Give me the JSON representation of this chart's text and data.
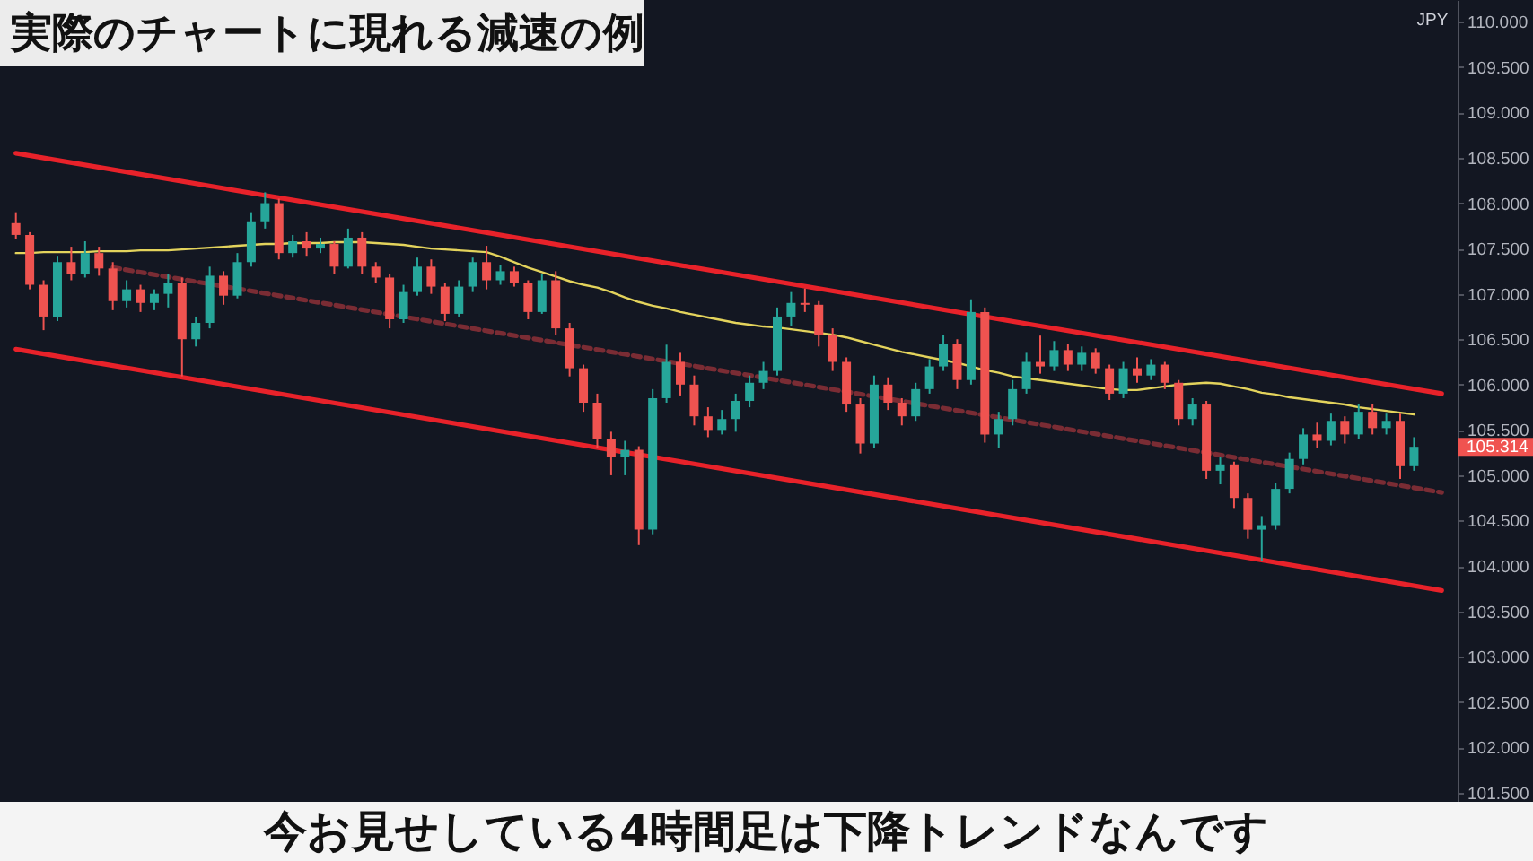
{
  "chart_data": {
    "type": "candlestick",
    "title": "実際のチャートに現れる減速の例",
    "ylabel": "JPY",
    "annotations": [
      "今お見せしている4時間足は下降トレンドなんです"
    ],
    "categories": [
      null,
      null,
      null,
      null,
      null,
      null,
      null,
      null,
      null,
      null,
      null,
      null,
      null,
      null,
      null,
      null,
      null,
      null,
      null,
      null,
      null,
      null,
      null,
      null,
      null,
      null,
      null,
      null,
      null,
      null,
      null,
      null,
      null,
      null,
      null,
      null,
      null,
      null,
      null,
      null,
      null,
      null,
      null,
      null,
      null,
      null,
      null,
      null,
      null,
      null,
      null,
      null,
      null,
      null,
      null,
      null,
      null,
      null,
      null,
      null,
      null,
      null,
      null,
      null,
      null,
      null,
      null,
      null,
      null,
      null,
      null,
      null,
      null,
      null,
      null,
      null,
      null,
      null,
      null,
      null,
      null,
      null,
      null,
      null,
      null,
      null,
      null,
      null,
      null,
      null,
      null,
      null,
      null,
      null,
      null,
      null,
      null,
      null,
      null,
      null,
      null,
      null,
      null,
      null
    ],
    "ohlc": [
      [
        107.78,
        107.9,
        107.6,
        107.65
      ],
      [
        107.65,
        107.68,
        107.05,
        107.1
      ],
      [
        107.1,
        107.15,
        106.6,
        106.75
      ],
      [
        106.75,
        107.42,
        106.7,
        107.35
      ],
      [
        107.35,
        107.52,
        107.15,
        107.22
      ],
      [
        107.22,
        107.58,
        107.18,
        107.45
      ],
      [
        107.45,
        107.52,
        107.2,
        107.28
      ],
      [
        107.28,
        107.35,
        106.82,
        106.92
      ],
      [
        106.92,
        107.15,
        106.85,
        107.05
      ],
      [
        107.05,
        107.1,
        106.8,
        106.9
      ],
      [
        106.9,
        107.05,
        106.82,
        107.0
      ],
      [
        107.0,
        107.22,
        106.85,
        107.12
      ],
      [
        107.12,
        107.18,
        106.09,
        106.5
      ],
      [
        106.5,
        106.75,
        106.42,
        106.68
      ],
      [
        106.68,
        107.3,
        106.62,
        107.2
      ],
      [
        107.2,
        107.25,
        106.88,
        106.98
      ],
      [
        106.98,
        107.45,
        106.95,
        107.35
      ],
      [
        107.35,
        107.9,
        107.3,
        107.8
      ],
      [
        107.8,
        108.12,
        107.72,
        108.0
      ],
      [
        108.0,
        108.05,
        107.38,
        107.45
      ],
      [
        107.45,
        107.65,
        107.4,
        107.58
      ],
      [
        107.58,
        107.68,
        107.42,
        107.5
      ],
      [
        107.5,
        107.62,
        107.45,
        107.55
      ],
      [
        107.55,
        107.58,
        107.22,
        107.3
      ],
      [
        107.3,
        107.72,
        107.28,
        107.62
      ],
      [
        107.62,
        107.68,
        107.22,
        107.3
      ],
      [
        107.3,
        107.35,
        107.12,
        107.18
      ],
      [
        107.18,
        107.22,
        106.62,
        106.72
      ],
      [
        106.72,
        107.1,
        106.68,
        107.02
      ],
      [
        107.02,
        107.4,
        106.98,
        107.3
      ],
      [
        107.3,
        107.38,
        107.0,
        107.08
      ],
      [
        107.08,
        107.12,
        106.7,
        106.78
      ],
      [
        106.78,
        107.15,
        106.75,
        107.08
      ],
      [
        107.08,
        107.4,
        107.02,
        107.35
      ],
      [
        107.35,
        107.53,
        107.05,
        107.15
      ],
      [
        107.15,
        107.32,
        107.1,
        107.25
      ],
      [
        107.25,
        107.3,
        107.08,
        107.12
      ],
      [
        107.12,
        107.15,
        106.72,
        106.8
      ],
      [
        106.8,
        107.22,
        106.78,
        107.15
      ],
      [
        107.15,
        107.25,
        106.55,
        106.62
      ],
      [
        106.62,
        106.68,
        106.09,
        106.18
      ],
      [
        106.18,
        106.22,
        105.7,
        105.8
      ],
      [
        105.8,
        105.9,
        105.3,
        105.4
      ],
      [
        105.4,
        105.48,
        105.0,
        105.2
      ],
      [
        105.2,
        105.38,
        105.0,
        105.28
      ],
      [
        105.28,
        105.32,
        104.23,
        104.4
      ],
      [
        104.4,
        105.95,
        104.35,
        105.85
      ],
      [
        105.85,
        106.44,
        105.8,
        106.25
      ],
      [
        106.25,
        106.35,
        105.88,
        106.0
      ],
      [
        106.0,
        106.1,
        105.55,
        105.65
      ],
      [
        105.65,
        105.75,
        105.42,
        105.5
      ],
      [
        105.5,
        105.72,
        105.45,
        105.62
      ],
      [
        105.62,
        105.9,
        105.48,
        105.82
      ],
      [
        105.82,
        106.1,
        105.75,
        106.02
      ],
      [
        106.02,
        106.25,
        105.95,
        106.15
      ],
      [
        106.15,
        106.85,
        106.1,
        106.75
      ],
      [
        106.75,
        107.02,
        106.65,
        106.9
      ],
      [
        106.9,
        107.06,
        106.8,
        106.88
      ],
      [
        106.88,
        106.92,
        106.42,
        106.55
      ],
      [
        106.55,
        106.62,
        106.15,
        106.25
      ],
      [
        106.25,
        106.3,
        105.7,
        105.78
      ],
      [
        105.78,
        105.85,
        105.24,
        105.35
      ],
      [
        105.35,
        106.1,
        105.3,
        106.0
      ],
      [
        106.0,
        106.08,
        105.72,
        105.8
      ],
      [
        105.8,
        105.85,
        105.55,
        105.65
      ],
      [
        105.65,
        106.02,
        105.6,
        105.95
      ],
      [
        105.95,
        106.28,
        105.9,
        106.2
      ],
      [
        106.2,
        106.55,
        106.15,
        106.45
      ],
      [
        106.45,
        106.5,
        105.95,
        106.05
      ],
      [
        106.05,
        106.94,
        106.0,
        106.8
      ],
      [
        106.8,
        106.85,
        105.36,
        105.45
      ],
      [
        105.45,
        105.7,
        105.3,
        105.62
      ],
      [
        105.62,
        106.05,
        105.55,
        105.95
      ],
      [
        105.95,
        106.35,
        105.9,
        106.25
      ],
      [
        106.25,
        106.54,
        106.12,
        106.2
      ],
      [
        106.2,
        106.48,
        106.15,
        106.38
      ],
      [
        106.38,
        106.45,
        106.15,
        106.22
      ],
      [
        106.22,
        106.42,
        106.15,
        106.35
      ],
      [
        106.35,
        106.4,
        106.12,
        106.18
      ],
      [
        106.18,
        106.22,
        105.83,
        105.9
      ],
      [
        105.9,
        106.25,
        105.85,
        106.18
      ],
      [
        106.18,
        106.3,
        106.02,
        106.1
      ],
      [
        106.1,
        106.28,
        106.05,
        106.22
      ],
      [
        106.22,
        106.25,
        105.95,
        106.02
      ],
      [
        106.02,
        106.05,
        105.55,
        105.62
      ],
      [
        105.62,
        105.85,
        105.55,
        105.78
      ],
      [
        105.78,
        105.82,
        104.96,
        105.05
      ],
      [
        105.05,
        105.2,
        104.9,
        105.12
      ],
      [
        105.12,
        105.15,
        104.64,
        104.75
      ],
      [
        104.75,
        104.8,
        104.3,
        104.4
      ],
      [
        104.4,
        104.55,
        104.05,
        104.45
      ],
      [
        104.45,
        104.92,
        104.4,
        104.85
      ],
      [
        104.85,
        105.25,
        104.8,
        105.18
      ],
      [
        105.18,
        105.52,
        105.12,
        105.45
      ],
      [
        105.45,
        105.58,
        105.3,
        105.38
      ],
      [
        105.38,
        105.68,
        105.33,
        105.6
      ],
      [
        105.6,
        105.65,
        105.35,
        105.45
      ],
      [
        105.45,
        105.78,
        105.4,
        105.7
      ],
      [
        105.7,
        105.79,
        105.45,
        105.52
      ],
      [
        105.52,
        105.68,
        105.45,
        105.6
      ],
      [
        105.6,
        105.68,
        104.96,
        105.1
      ],
      [
        105.1,
        105.42,
        105.05,
        105.314
      ],
      null,
      null
    ],
    "value_labels": [
      null,
      null,
      null,
      null,
      null,
      null,
      null,
      null,
      null,
      null,
      null,
      null,
      null,
      null,
      null,
      null,
      null,
      null,
      null,
      null,
      null,
      null,
      null,
      null,
      null,
      null,
      null,
      null,
      null,
      null,
      null,
      null,
      null,
      null,
      null,
      null,
      null,
      null,
      null,
      null,
      null,
      null,
      null,
      null,
      null,
      null,
      null,
      null,
      null,
      null,
      null,
      null,
      null,
      null,
      null,
      null,
      null,
      null,
      null,
      null,
      null,
      null,
      null,
      null,
      null,
      null,
      null,
      null,
      null,
      null,
      null,
      null,
      null,
      null,
      null,
      null,
      null,
      null,
      null,
      null,
      null,
      null,
      null,
      null,
      null,
      null,
      null,
      null,
      null,
      null,
      null,
      null,
      null,
      null,
      null,
      null,
      null,
      null,
      null,
      null,
      null,
      "105.314",
      null,
      null
    ],
    "colors": [
      "#ef5350",
      "#ef5350",
      "#ef5350",
      "#26a69a",
      "#ef5350",
      "#26a69a",
      "#ef5350",
      "#ef5350",
      "#26a69a",
      "#ef5350",
      "#26a69a",
      "#26a69a",
      "#ef5350",
      "#26a69a",
      "#26a69a",
      "#ef5350",
      "#26a69a",
      "#26a69a",
      "#26a69a",
      "#ef5350",
      "#26a69a",
      "#ef5350",
      "#26a69a",
      "#ef5350",
      "#26a69a",
      "#ef5350",
      "#ef5350",
      "#ef5350",
      "#26a69a",
      "#26a69a",
      "#ef5350",
      "#ef5350",
      "#26a69a",
      "#26a69a",
      "#ef5350",
      "#26a69a",
      "#ef5350",
      "#ef5350",
      "#26a69a",
      "#ef5350",
      "#ef5350",
      "#ef5350",
      "#ef5350",
      "#ef5350",
      "#26a69a",
      "#ef5350",
      "#26a69a",
      "#26a69a",
      "#ef5350",
      "#ef5350",
      "#ef5350",
      "#26a69a",
      "#26a69a",
      "#26a69a",
      "#26a69a",
      "#26a69a",
      "#26a69a",
      "#ef5350",
      "#ef5350",
      "#ef5350",
      "#ef5350",
      "#ef5350",
      "#26a69a",
      "#ef5350",
      "#ef5350",
      "#26a69a",
      "#26a69a",
      "#26a69a",
      "#ef5350",
      "#26a69a",
      "#ef5350",
      "#26a69a",
      "#26a69a",
      "#26a69a",
      "#ef5350",
      "#26a69a",
      "#ef5350",
      "#26a69a",
      "#ef5350",
      "#ef5350",
      "#26a69a",
      "#ef5350",
      "#26a69a",
      "#ef5350",
      "#ef5350",
      "#26a69a",
      "#ef5350",
      "#26a69a",
      "#ef5350",
      "#ef5350",
      "#26a69a",
      "#26a69a",
      "#26a69a",
      "#26a69a",
      "#ef5350",
      "#26a69a",
      "#ef5350",
      "#26a69a",
      "#ef5350",
      "#26a69a",
      "#ef5350",
      "#26a69a",
      null,
      null
    ],
    "series": [
      {
        "type": "line",
        "color": "#e3d35c",
        "values": [
          107.45,
          107.45,
          107.46,
          107.46,
          107.46,
          107.46,
          107.47,
          107.47,
          107.47,
          107.48,
          107.48,
          107.48,
          107.49,
          107.5,
          107.51,
          107.52,
          107.53,
          107.54,
          107.55,
          107.55,
          107.56,
          107.56,
          107.56,
          107.57,
          107.57,
          107.57,
          107.56,
          107.55,
          107.54,
          107.52,
          107.5,
          107.49,
          107.48,
          107.47,
          107.46,
          107.41,
          107.35,
          107.29,
          107.24,
          107.19,
          107.14,
          107.1,
          107.07,
          107.02,
          106.96,
          106.91,
          106.87,
          106.84,
          106.8,
          106.77,
          106.74,
          106.71,
          106.68,
          106.66,
          106.64,
          106.63,
          106.61,
          106.59,
          106.57,
          106.55,
          106.52,
          106.48,
          106.44,
          106.4,
          106.36,
          106.33,
          106.3,
          106.27,
          106.24,
          106.2,
          106.16,
          106.13,
          106.09,
          106.07,
          106.05,
          106.03,
          106.01,
          105.99,
          105.97,
          105.95,
          105.94,
          105.94,
          105.96,
          105.98,
          106.0,
          106.01,
          106.02,
          106.01,
          105.98,
          105.95,
          105.91,
          105.89,
          105.86,
          105.84,
          105.82,
          105.8,
          105.78,
          105.75,
          105.73,
          105.71,
          105.69,
          105.67,
          null,
          null
        ]
      },
      {
        "type": "line",
        "color": "#e8222a",
        "values": [
          108.55,
          null,
          null,
          null,
          null,
          null,
          null,
          null,
          null,
          null,
          null,
          null,
          null,
          null,
          null,
          null,
          null,
          null,
          null,
          null,
          null,
          null,
          null,
          null,
          null,
          null,
          null,
          null,
          null,
          null,
          null,
          null,
          null,
          null,
          null,
          null,
          null,
          null,
          null,
          null,
          null,
          null,
          null,
          null,
          null,
          null,
          null,
          null,
          null,
          null,
          null,
          null,
          null,
          null,
          null,
          null,
          null,
          null,
          null,
          null,
          null,
          null,
          null,
          null,
          null,
          null,
          null,
          null,
          null,
          null,
          null,
          null,
          null,
          null,
          null,
          null,
          null,
          null,
          null,
          null,
          null,
          null,
          null,
          null,
          null,
          null,
          null,
          null,
          null,
          null,
          null,
          null,
          null,
          null,
          null,
          null,
          null,
          null,
          null,
          null,
          null,
          null,
          null,
          105.9
        ]
      },
      {
        "type": "line",
        "color": "#e8222a",
        "values": [
          106.39,
          null,
          null,
          null,
          null,
          null,
          null,
          null,
          null,
          null,
          null,
          null,
          null,
          null,
          null,
          null,
          null,
          null,
          null,
          null,
          null,
          null,
          null,
          null,
          null,
          null,
          null,
          null,
          null,
          null,
          null,
          null,
          null,
          null,
          null,
          null,
          null,
          null,
          null,
          null,
          null,
          null,
          null,
          null,
          null,
          null,
          null,
          null,
          null,
          null,
          null,
          null,
          null,
          null,
          null,
          null,
          null,
          null,
          null,
          null,
          null,
          null,
          null,
          null,
          null,
          null,
          null,
          null,
          null,
          null,
          null,
          null,
          null,
          null,
          null,
          null,
          null,
          null,
          null,
          null,
          null,
          null,
          null,
          null,
          null,
          null,
          null,
          null,
          null,
          null,
          null,
          null,
          null,
          null,
          null,
          null,
          null,
          null,
          null,
          null,
          null,
          null,
          null,
          103.73
        ]
      },
      {
        "type": "line",
        "color": "#7a2c34",
        "line_style": "dashed",
        "values": [
          null,
          null,
          null,
          null,
          null,
          null,
          null,
          107.29,
          null,
          null,
          null,
          null,
          null,
          null,
          null,
          null,
          null,
          null,
          null,
          null,
          null,
          null,
          null,
          null,
          null,
          null,
          null,
          null,
          null,
          null,
          null,
          null,
          null,
          null,
          null,
          null,
          null,
          null,
          null,
          null,
          null,
          null,
          null,
          null,
          null,
          null,
          null,
          null,
          null,
          null,
          null,
          null,
          null,
          null,
          null,
          null,
          null,
          null,
          null,
          null,
          null,
          null,
          null,
          null,
          null,
          null,
          null,
          null,
          null,
          null,
          null,
          null,
          null,
          null,
          null,
          null,
          null,
          null,
          null,
          null,
          null,
          null,
          null,
          null,
          null,
          null,
          null,
          null,
          null,
          null,
          null,
          null,
          null,
          null,
          null,
          null,
          null,
          null,
          null,
          null,
          null,
          null,
          null,
          104.81
        ]
      }
    ],
    "ylim": [
      101.4,
      110.24
    ],
    "yticks": [
      {
        "value": 101.5,
        "label": "101.500"
      },
      {
        "value": 102,
        "label": "102.000"
      },
      {
        "value": 102.5,
        "label": "102.500"
      },
      {
        "value": 103,
        "label": "103.000"
      },
      {
        "value": 103.5,
        "label": "103.500"
      },
      {
        "value": 104,
        "label": "104.000"
      },
      {
        "value": 104.5,
        "label": "104.500"
      },
      {
        "value": 105,
        "label": "105.000"
      },
      {
        "value": 105.5,
        "label": "105.500"
      },
      {
        "value": 106,
        "label": "106.000"
      },
      {
        "value": 106.5,
        "label": "106.500"
      },
      {
        "value": 107,
        "label": "107.000"
      },
      {
        "value": 107.5,
        "label": "107.500"
      },
      {
        "value": 108,
        "label": "108.000"
      },
      {
        "value": 108.5,
        "label": "108.500"
      },
      {
        "value": 109,
        "label": "109.000"
      },
      {
        "value": 109.5,
        "label": "109.500"
      },
      {
        "value": 110,
        "label": "110.000"
      }
    ],
    "tick_labels": "y"
  }
}
